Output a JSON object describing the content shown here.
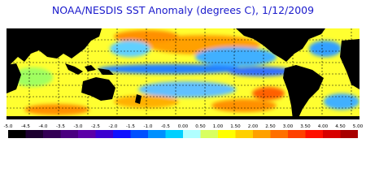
{
  "title": "NOAA/NESDIS SST Anomaly (degrees C), 1/12/2009",
  "colorbar": {
    "ticks": [
      {
        "value": -5,
        "label": "-5.0"
      },
      {
        "value": -4.5,
        "label": "-4.5"
      },
      {
        "value": -4,
        "label": "-4.0"
      },
      {
        "value": -3.5,
        "label": "-3.5"
      },
      {
        "value": -3,
        "label": "-3.0"
      },
      {
        "value": -2.5,
        "label": "-2.5"
      },
      {
        "value": -2,
        "label": "-2.0"
      },
      {
        "value": -1.5,
        "label": "-1.5"
      },
      {
        "value": -1,
        "label": "-1.0"
      },
      {
        "value": -0.5,
        "label": "-0.5"
      },
      {
        "value": 0,
        "label": "0.00"
      },
      {
        "value": 0.5,
        "label": "0.50"
      },
      {
        "value": 1,
        "label": "1.00"
      },
      {
        "value": 1.5,
        "label": "1.50"
      },
      {
        "value": 2,
        "label": "2.00"
      },
      {
        "value": 2.5,
        "label": "2.50"
      },
      {
        "value": 3,
        "label": "3.00"
      },
      {
        "value": 3.5,
        "label": "3.50"
      },
      {
        "value": 4,
        "label": "4.00"
      },
      {
        "value": 4.5,
        "label": "4.50"
      },
      {
        "value": 5,
        "label": "5.00"
      }
    ],
    "colors": [
      "#000000",
      "#1c0030",
      "#330055",
      "#4a0080",
      "#5c00a8",
      "#3c00d0",
      "#1010ff",
      "#0050ff",
      "#0090ff",
      "#00d0ff",
      "#b0ffff",
      "#d8ff60",
      "#ffff00",
      "#ffd000",
      "#ffa000",
      "#ff7000",
      "#ff4000",
      "#ff1000",
      "#d80000",
      "#a80000"
    ]
  }
}
